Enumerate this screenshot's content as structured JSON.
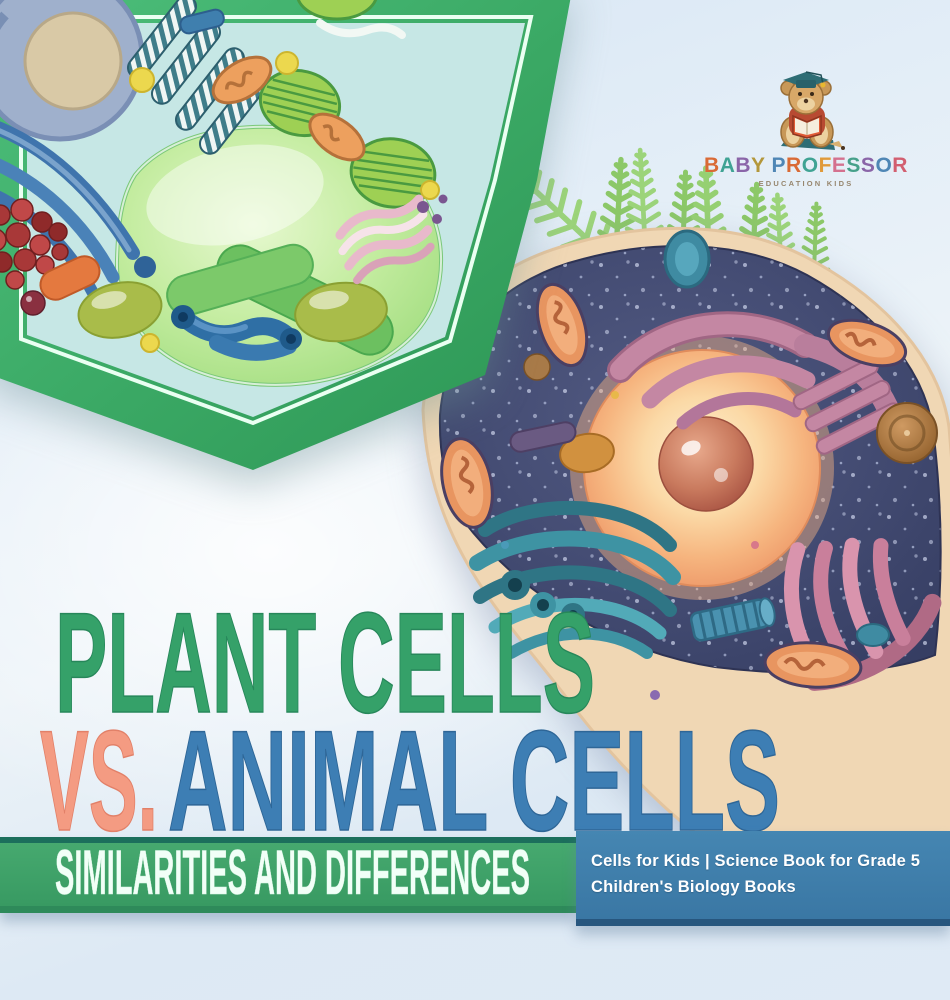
{
  "cover": {
    "title": {
      "line1": "PLANT CELLS",
      "vs": "VS.",
      "line2": "ANIMAL CELLS"
    },
    "banner": {
      "text": "SIMILARITIES AND DIFFERENCES"
    },
    "series_panel": {
      "line1": "Cells for Kids | Science Book for Grade 5",
      "line2": "Children's Biology Books"
    }
  },
  "logo": {
    "brand": "BABY PROFESSOR",
    "tagline": "EDUCATION KIDS",
    "mascot": "teddy-bear-graduate-icon",
    "letter_colors": [
      "#d96a35",
      "#3fa394",
      "#8a65a8",
      "#b3973b",
      "",
      "#4f86b5",
      "#d96a35",
      "#3fa394",
      "#e09a3a",
      "#d4718f",
      "#46a08a",
      "#8a65a8",
      "#4f86b5",
      "#d25f70"
    ]
  },
  "palette": {
    "title_plant_green": "#35a169",
    "title_vs_salmon": "#f49b82",
    "title_animal_blue": "#3d7eb4",
    "banner_green": "#3da06a",
    "banner_green_dark_edge": "#1c6f5c",
    "panel_blue": "#3d7ca8",
    "panel_blue_dark_edge": "#27567e",
    "background_light_blue": "#dfeaf5",
    "plant_cell_wall_green": "#3fae66",
    "plant_cytoplasm_cyan": "#c6e7e5",
    "vacuole_light_green": "#b5e494",
    "animal_rim_cream": "#f0d7b4",
    "animal_interior_navy": "#424a70",
    "nucleus_glow_peach": "#f8cf9e",
    "nucleolus_brown_red": "#c8785e",
    "fern_green": "#8cc868"
  }
}
